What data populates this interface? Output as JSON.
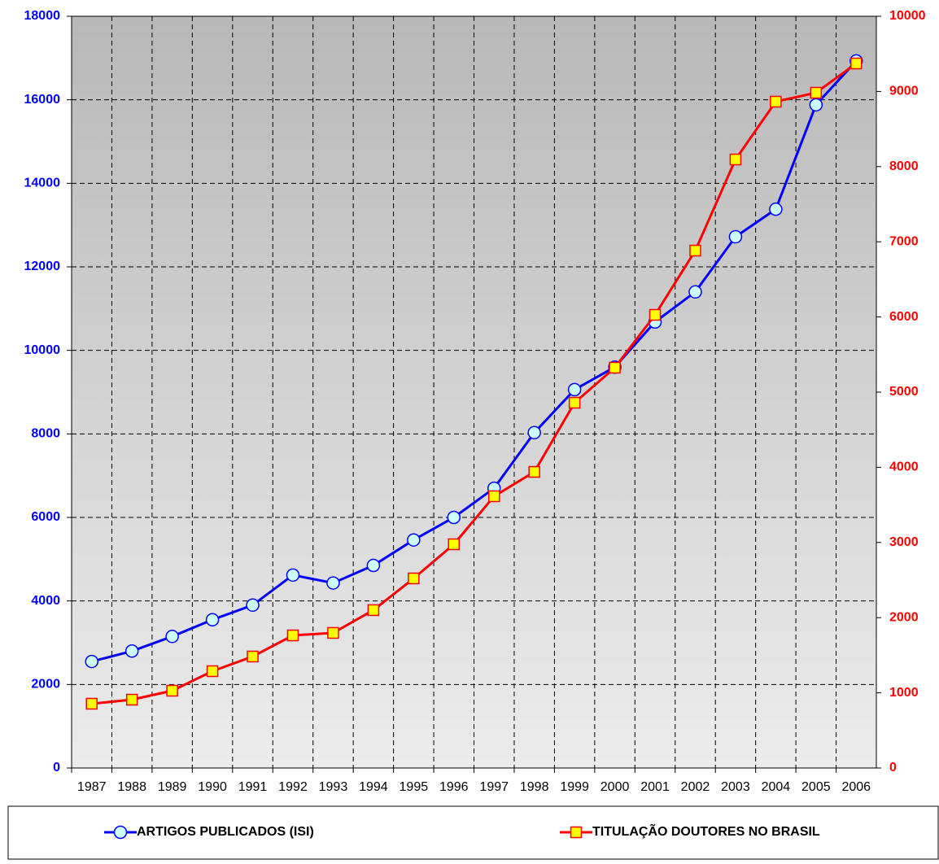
{
  "chart_data": {
    "type": "line",
    "categories": [
      "1987",
      "1988",
      "1989",
      "1990",
      "1991",
      "1992",
      "1993",
      "1994",
      "1995",
      "1996",
      "1997",
      "1998",
      "1999",
      "2000",
      "2001",
      "2002",
      "2003",
      "2004",
      "2005",
      "2006"
    ],
    "series": [
      {
        "name": "ARTIGOS PUBLICADOS (ISI)",
        "color": "#0000ff",
        "marker": "circle",
        "values": [
          2550,
          2800,
          3150,
          3550,
          3900,
          4620,
          4430,
          4850,
          5460,
          6000,
          6700,
          8030,
          9060,
          9600,
          10680,
          11400,
          12720,
          13380,
          15880,
          16930
        ]
      },
      {
        "name": "TITULAÇÃO DOUTORES NO BRASIL",
        "color": "#ff0000",
        "marker": "square",
        "axis": "y2",
        "values": [
          855,
          909,
          1028,
          1288,
          1483,
          1764,
          1797,
          2100,
          2522,
          2976,
          3615,
          3939,
          4859,
          5325,
          6028,
          6883,
          8095,
          8864,
          8983,
          9372
        ]
      }
    ],
    "ylim": [
      0,
      18000
    ],
    "yticks": [
      0,
      2000,
      4000,
      6000,
      8000,
      10000,
      12000,
      14000,
      16000,
      18000
    ],
    "y2lim": [
      0,
      10000
    ],
    "y2ticks": [
      0,
      1000,
      2000,
      3000,
      4000,
      5000,
      6000,
      7000,
      8000,
      9000,
      10000
    ],
    "grid": true,
    "legend": "bottom"
  }
}
